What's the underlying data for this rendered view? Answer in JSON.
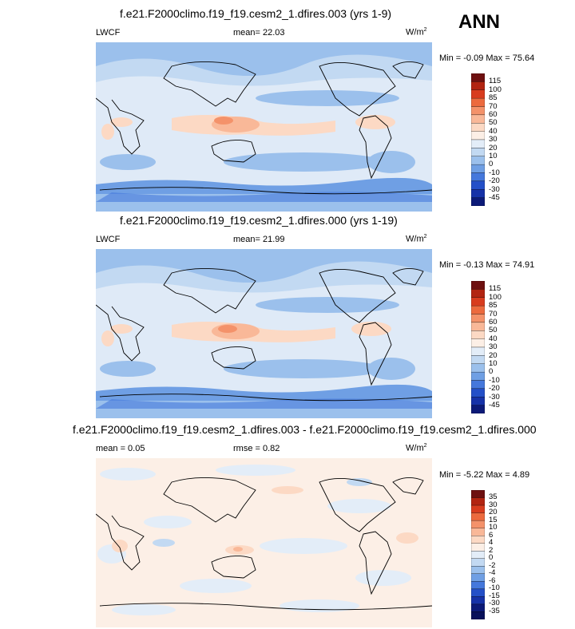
{
  "season": "ANN",
  "panels": [
    {
      "title": "f.e21.F2000climo.f19_f19.cesm2_1.dfires.003 (yrs 1-9)",
      "left_label": "LWCF",
      "center_label": "mean=  22.03",
      "units": "W/m",
      "units_exp": "2",
      "minmax": "Min =  -0.09 Max =  75.64",
      "levels": [
        "115",
        "100",
        "85",
        "70",
        "60",
        "50",
        "40",
        "30",
        "20",
        "10",
        "0",
        "-10",
        "-20",
        "-30",
        "-45"
      ]
    },
    {
      "title": "f.e21.F2000climo.f19_f19.cesm2_1.dfires.000 (yrs 1-19)",
      "left_label": "LWCF",
      "center_label": "mean=  21.99",
      "units": "W/m",
      "units_exp": "2",
      "minmax": "Min =  -0.13 Max =  74.91",
      "levels": [
        "115",
        "100",
        "85",
        "70",
        "60",
        "50",
        "40",
        "30",
        "20",
        "10",
        "0",
        "-10",
        "-20",
        "-30",
        "-45"
      ]
    },
    {
      "title": "f.e21.F2000climo.f19_f19.cesm2_1.dfires.003 - f.e21.F2000climo.f19_f19.cesm2_1.dfires.000",
      "left_label": "mean =   0.05",
      "center_label": "rmse =   0.82",
      "units": "W/m",
      "units_exp": "2",
      "minmax": "Min =  -5.22 Max =   4.89",
      "levels": [
        "35",
        "30",
        "20",
        "15",
        "10",
        "6",
        "4",
        "2",
        "0",
        "-2",
        "-4",
        "-6",
        "-10",
        "-15",
        "-30",
        "-35"
      ]
    }
  ],
  "colors": {
    "field_a": [
      "#6e1010",
      "#b22411",
      "#d83c1e",
      "#ec6a3e",
      "#f4926a",
      "#f9b898",
      "#fcd9c4",
      "#fcefe6",
      "#e3edf8",
      "#c2d9f2",
      "#9bc0ec",
      "#6f9fe4",
      "#4578dc",
      "#2450c8",
      "#1632a8",
      "#0c1a78"
    ],
    "field_b": [
      "#6e1010",
      "#b22411",
      "#d83c1e",
      "#ec6a3e",
      "#f4926a",
      "#f9b898",
      "#fcd9c4",
      "#fcefe6",
      "#e3edf8",
      "#c2d9f2",
      "#9bc0ec",
      "#6f9fe4",
      "#4578dc",
      "#2450c8",
      "#1632a8",
      "#0c1a78",
      "#08105a"
    ]
  },
  "chart_data": [
    {
      "type": "heatmap",
      "title": "f.e21.F2000climo.f19_f19.cesm2_1.dfires.003 (yrs 1-9)",
      "variable": "LWCF",
      "units": "W/m2",
      "mean": 22.03,
      "min": -0.09,
      "max": 75.64,
      "contour_levels": [
        -45,
        -30,
        -20,
        -10,
        0,
        10,
        20,
        30,
        40,
        50,
        60,
        70,
        85,
        100,
        115
      ]
    },
    {
      "type": "heatmap",
      "title": "f.e21.F2000climo.f19_f19.cesm2_1.dfires.000 (yrs 1-19)",
      "variable": "LWCF",
      "units": "W/m2",
      "mean": 21.99,
      "min": -0.13,
      "max": 74.91,
      "contour_levels": [
        -45,
        -30,
        -20,
        -10,
        0,
        10,
        20,
        30,
        40,
        50,
        60,
        70,
        85,
        100,
        115
      ]
    },
    {
      "type": "heatmap",
      "title": "f.e21.F2000climo.f19_f19.cesm2_1.dfires.003 - f.e21.F2000climo.f19_f19.cesm2_1.dfires.000",
      "units": "W/m2",
      "mean": 0.05,
      "rmse": 0.82,
      "min": -5.22,
      "max": 4.89,
      "contour_levels": [
        -35,
        -30,
        -15,
        -10,
        -6,
        -4,
        -2,
        0,
        2,
        4,
        6,
        10,
        15,
        20,
        30,
        35
      ]
    }
  ]
}
